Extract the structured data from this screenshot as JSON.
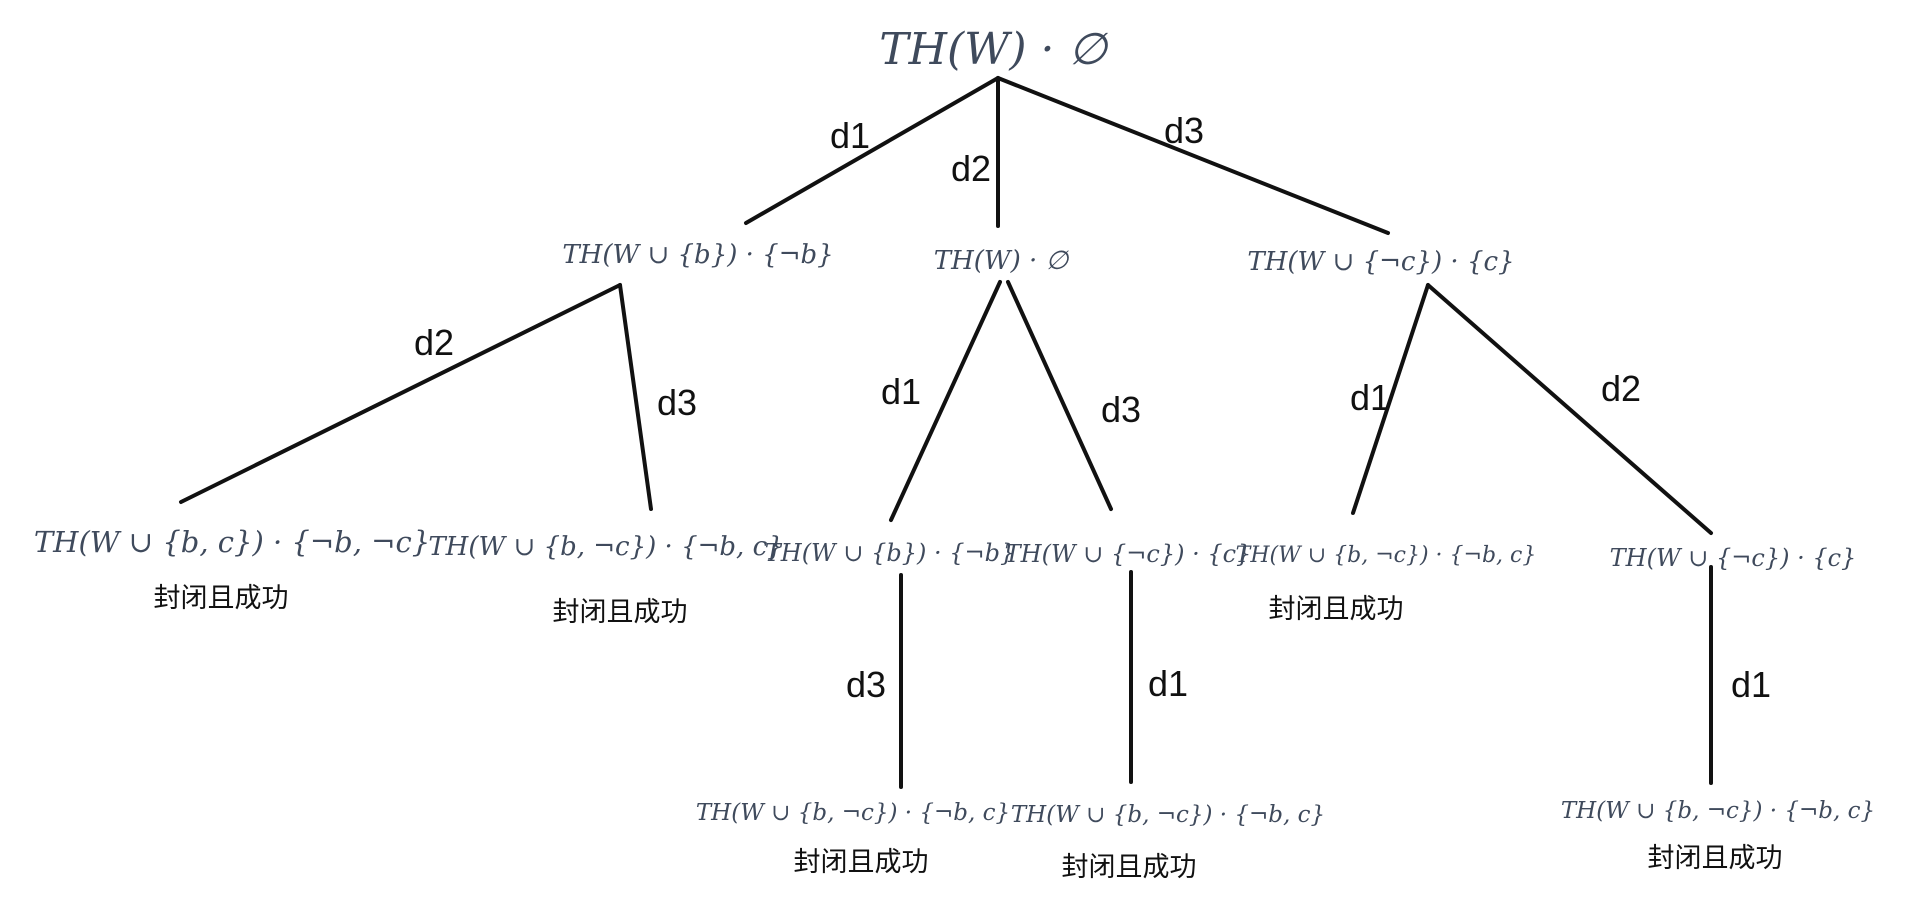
{
  "tree": {
    "root": "TH(W) · ∅",
    "level1": {
      "left": "TH(W ∪ {b}) · {¬b}",
      "middle": "TH(W) · ∅",
      "right": "TH(W ∪ {¬c}) · {c}"
    },
    "level2": {
      "n1": "TH(W ∪ {b, c}) · {¬b, ¬c}",
      "n2": "TH(W ∪ {b, ¬c}) · {¬b, c}",
      "n3": "TH(W ∪ {b}) · {¬b}",
      "n4": "TH(W ∪ {¬c}) · {c}",
      "n5": "TH(W ∪ {b, ¬c}) · {¬b, c}",
      "n6": "TH(W ∪ {¬c}) · {c}"
    },
    "level3": {
      "n1": "TH(W ∪ {b, ¬c}) · {¬b, c}",
      "n2": "TH(W ∪ {b, ¬c}) · {¬b, c}",
      "n3": "TH(W ∪ {b, ¬c}) · {¬b, c}"
    }
  },
  "edges": {
    "root_left": "d1",
    "root_middle": "d2",
    "root_right": "d3",
    "left_n1": "d2",
    "left_n2": "d3",
    "middle_n3": "d1",
    "middle_n4": "d3",
    "right_n5": "d1",
    "right_n6": "d2",
    "n3_leaf": "d3",
    "n4_leaf": "d1",
    "n6_leaf": "d1"
  },
  "status": {
    "s1": "封闭且成功",
    "s2": "封闭且成功",
    "s3": "封闭且成功",
    "s4": "封闭且成功",
    "s5": "封闭且成功",
    "s6": "封闭且成功"
  }
}
